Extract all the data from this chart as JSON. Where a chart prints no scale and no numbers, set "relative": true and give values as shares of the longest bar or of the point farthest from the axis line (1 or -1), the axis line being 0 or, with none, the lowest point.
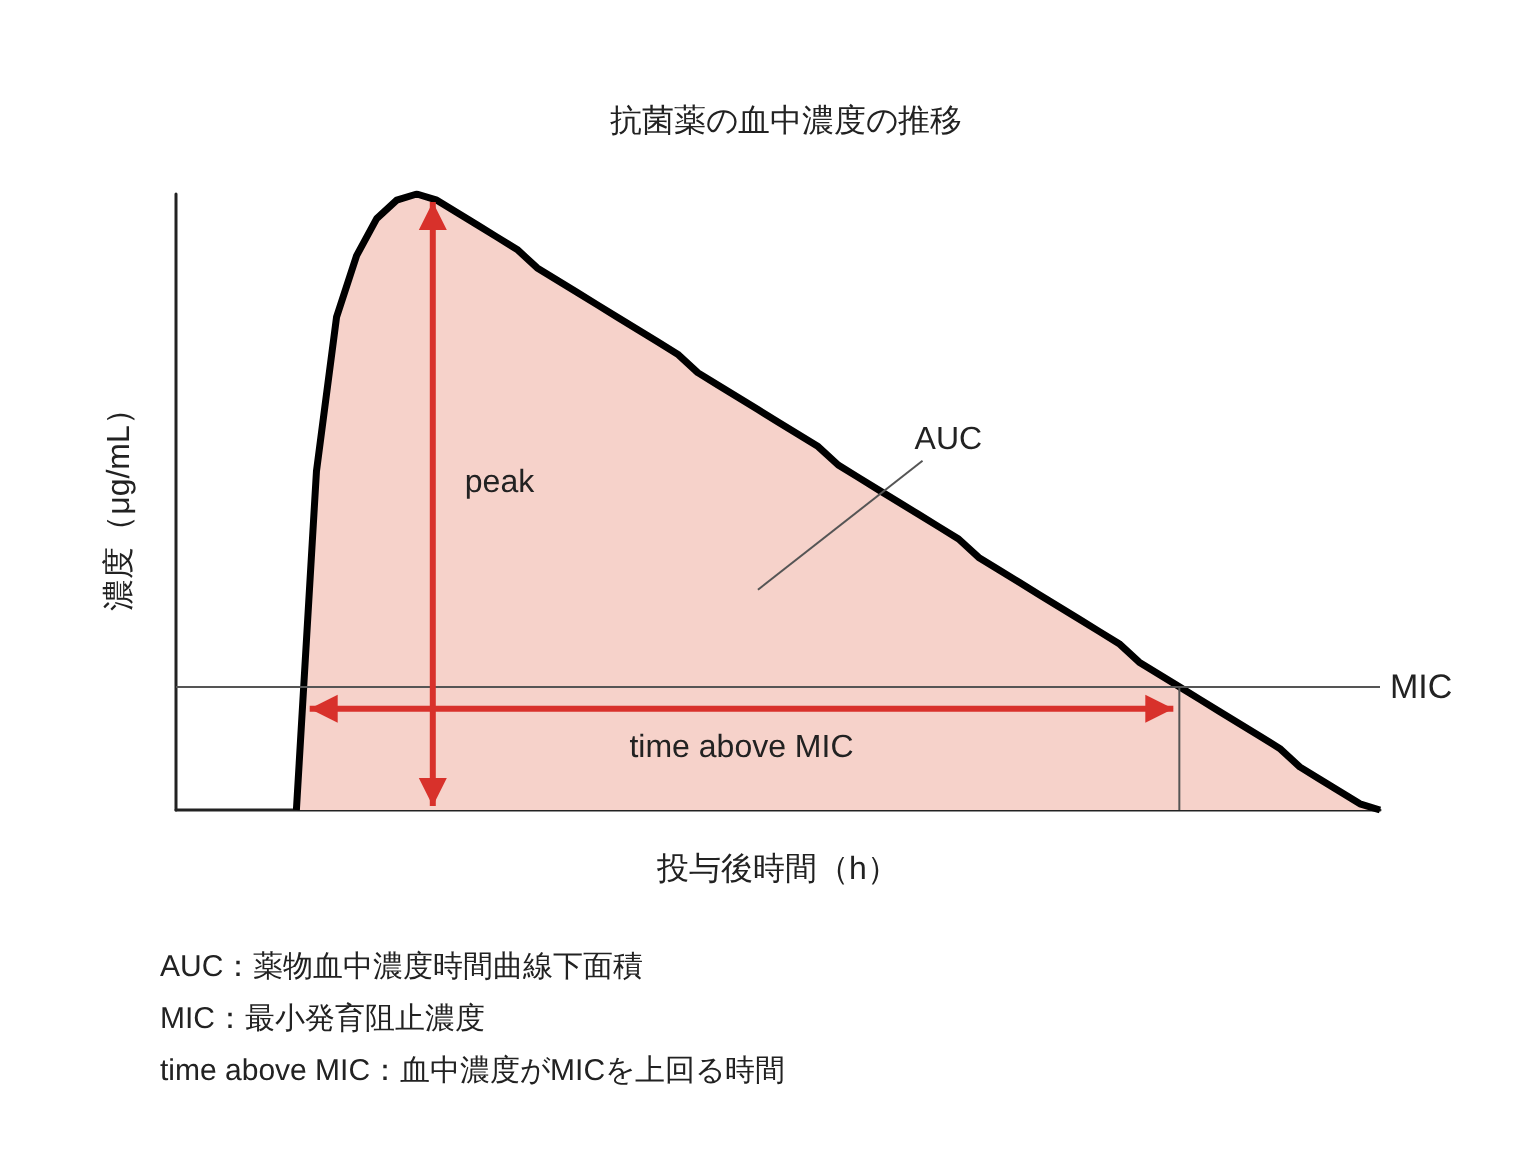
{
  "chart_data": {
    "type": "area",
    "title": "抗菌薬の血中濃度の推移",
    "xlabel": "投与後時間（h）",
    "ylabel": "濃度（μg/mL）",
    "relative": true,
    "categories": [
      null,
      null,
      null,
      null,
      null,
      null,
      null,
      null,
      null,
      null,
      null,
      null,
      null,
      null,
      null,
      null,
      null,
      null,
      null,
      null,
      null,
      null,
      null,
      null,
      null,
      null,
      null,
      null,
      null,
      null,
      null,
      null,
      null,
      null,
      null,
      null,
      null,
      null,
      null,
      null,
      null,
      null,
      null,
      null,
      null,
      null,
      null,
      null,
      null,
      null,
      null,
      null,
      null,
      null,
      null,
      null,
      null,
      null,
      null,
      null,
      null
    ],
    "series": [
      {
        "color": "#f6d2ca",
        "values": [
          null,
          null,
          null,
          null,
          null,
          null,
          0,
          0.55,
          0.8,
          0.9,
          0.96,
          0.99,
          1,
          0.99,
          0.97,
          0.95,
          0.93,
          0.91,
          0.88,
          0.86,
          0.84,
          0.82,
          0.8,
          0.78,
          0.76,
          0.74,
          0.71,
          0.69,
          0.67,
          0.65,
          0.63,
          0.61,
          0.59,
          0.56,
          0.54,
          0.52,
          0.5,
          0.48,
          0.46,
          0.44,
          0.41,
          0.39,
          0.37,
          0.35,
          0.33,
          0.31,
          0.29,
          0.27,
          0.24,
          0.22,
          0.2,
          0.18,
          0.16,
          0.14,
          0.12,
          0.1,
          0.07,
          0.05,
          0.03,
          0.01,
          0
        ]
      }
    ],
    "ref_lines": [
      {
        "axis": "y",
        "value": 0.2,
        "label": "MIC",
        "color": "#555555"
      }
    ],
    "annotations": [
      "peak",
      "AUC",
      "time above MIC",
      "AUC：薬物血中濃度時間曲線下面積",
      "MIC：最小発育阻止濃度",
      "time above MIC：血中濃度がMICを上回る時間"
    ],
    "grid": false,
    "marker": "none"
  }
}
